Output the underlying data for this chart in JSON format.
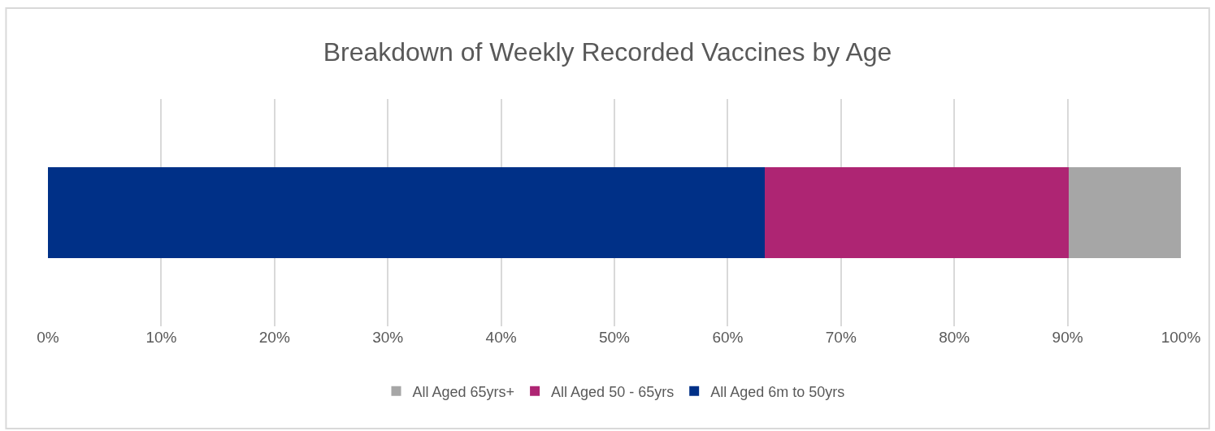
{
  "chart_data": {
    "type": "bar",
    "title": "Breakdown of Weekly Recorded Vaccines by Age",
    "orientation": "horizontal",
    "stacked": true,
    "categories": [
      null
    ],
    "series": [
      {
        "name": "All Aged 6m to 50yrs",
        "color": "#003087",
        "values": [
          63.3
        ]
      },
      {
        "name": "All Aged 50 - 65yrs",
        "color": "#ae2573",
        "values": [
          26.8
        ]
      },
      {
        "name": "All Aged 65yrs+",
        "color": "#a6a6a6",
        "values": [
          9.9
        ]
      }
    ],
    "xlim": [
      0,
      100
    ],
    "xticks": [
      {
        "value": 0,
        "label": "0%"
      },
      {
        "value": 10,
        "label": "10%"
      },
      {
        "value": 20,
        "label": "20%"
      },
      {
        "value": 30,
        "label": "30%"
      },
      {
        "value": 40,
        "label": "40%"
      },
      {
        "value": 50,
        "label": "50%"
      },
      {
        "value": 60,
        "label": "60%"
      },
      {
        "value": 70,
        "label": "70%"
      },
      {
        "value": 80,
        "label": "80%"
      },
      {
        "value": 90,
        "label": "90%"
      },
      {
        "value": 100,
        "label": "100%"
      }
    ],
    "grid": "x",
    "legend": "bottom"
  }
}
